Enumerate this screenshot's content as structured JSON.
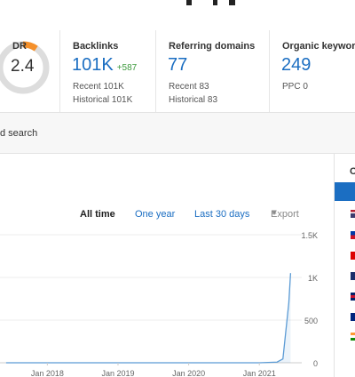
{
  "metrics": {
    "dr": {
      "label": "DR",
      "value": "2.4",
      "ring_fraction": 0.024
    },
    "backlinks": {
      "label": "Backlinks",
      "value": "101K",
      "delta": "+587",
      "recent": "Recent 101K",
      "historical": "Historical 101K"
    },
    "referring_domains": {
      "label": "Referring domains",
      "value": "77",
      "recent": "Recent 83",
      "historical": "Historical 83"
    },
    "organic_keywords": {
      "label": "Organic keywords",
      "value": "249",
      "ppc": "PPC 0"
    }
  },
  "search": {
    "text": "d search"
  },
  "chart": {
    "tabs": {
      "all_time": "All time",
      "one_year": "One year",
      "last_30_days": "Last 30 days",
      "export": "Export"
    }
  },
  "chart_data": {
    "type": "line",
    "title": "",
    "xlabel": "",
    "ylabel": "",
    "x_tick_labels": [
      "Jan 2018",
      "Jan 2019",
      "Jan 2020",
      "Jan 2021"
    ],
    "y_tick_labels": [
      "0",
      "500",
      "1K",
      "1.5K"
    ],
    "ylim": [
      0,
      1500
    ],
    "grid": true,
    "series": [
      {
        "color": "#5b9bd5",
        "x": [
          "2017-06",
          "2018-01",
          "2019-01",
          "2020-01",
          "2021-01",
          "2021-04",
          "2021-05",
          "2021-06",
          "2021-06"
        ],
        "values": [
          0,
          0,
          0,
          0,
          0,
          8,
          45,
          700,
          1050
        ]
      }
    ]
  },
  "side": {
    "header": "C"
  },
  "colors": {
    "accent": "#1b6ec2",
    "positive": "#3c9a3c",
    "ring_track": "#dddddd",
    "ring_fill": "#f5902a"
  },
  "icons": [
    "export-caret-icon",
    "country-flag-icon"
  ]
}
